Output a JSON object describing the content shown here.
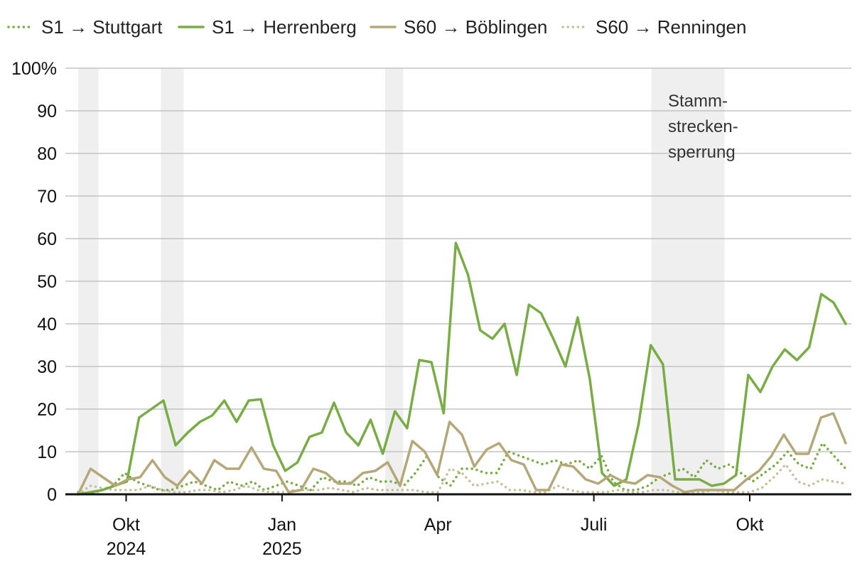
{
  "chart_data": {
    "type": "line",
    "title": "",
    "xlabel": "",
    "ylabel": "",
    "ylim": [
      0,
      100
    ],
    "y_ticks": [
      "100%",
      "90",
      "80",
      "70",
      "60",
      "50",
      "40",
      "30",
      "20",
      "10",
      "0"
    ],
    "y_tick_values": [
      100,
      90,
      80,
      70,
      60,
      50,
      40,
      30,
      20,
      10,
      0
    ],
    "x_start_week": 0,
    "x_end_week": 64,
    "x_ticks": [
      {
        "label": "Okt",
        "sublabel": "2024",
        "week": 4
      },
      {
        "label": "Jan",
        "sublabel": "2025",
        "week": 17
      },
      {
        "label": "Apr",
        "sublabel": "",
        "week": 30
      },
      {
        "label": "Juli",
        "sublabel": "",
        "week": 43
      },
      {
        "label": "Okt",
        "sublabel": "",
        "week": 56
      }
    ],
    "shaded_periods": [
      {
        "from": 0,
        "to": 1.7,
        "label": ""
      },
      {
        "from": 6.9,
        "to": 8.8,
        "label": ""
      },
      {
        "from": 25.6,
        "to": 27.1,
        "label": ""
      },
      {
        "from": 47.8,
        "to": 53.9,
        "label": "Stamm-\nstrecken-\nsperrung"
      }
    ],
    "annotation": {
      "lines": [
        "Stamm-",
        "strecken-",
        "sperrung"
      ]
    },
    "series": [
      {
        "name": "S1 → Stuttgart",
        "color": "#78ad45",
        "style": "dotted",
        "values": [
          0.5,
          0,
          1,
          2,
          5,
          3,
          2,
          1,
          1,
          2,
          3,
          2,
          1,
          3,
          2,
          3,
          1,
          2,
          3,
          2,
          1,
          4,
          3,
          3,
          2,
          4,
          3,
          3,
          2,
          5,
          9,
          4,
          2,
          6,
          6,
          5,
          5,
          10,
          9,
          8,
          7,
          8,
          7,
          8,
          6,
          9,
          3,
          1,
          1,
          2,
          4,
          5,
          6,
          4,
          8,
          6,
          7,
          5,
          3,
          5,
          7,
          10,
          7,
          6,
          12,
          9,
          6
        ]
      },
      {
        "name": "S1 → Herrenberg",
        "color": "#78ad45",
        "style": "solid",
        "values": [
          0,
          0.5,
          1,
          2,
          3,
          18,
          20,
          22,
          11.5,
          14.5,
          17,
          18.5,
          22,
          17,
          22,
          22.3,
          11.5,
          5.5,
          7.5,
          13.5,
          14.5,
          21.5,
          14.5,
          11.5,
          17.5,
          9.5,
          19.5,
          15.5,
          31.5,
          31,
          19,
          59,
          51.5,
          38.5,
          36.5,
          40,
          28,
          44.5,
          42.5,
          36.5,
          30,
          41.5,
          27,
          5,
          2,
          3.5,
          16.5,
          35,
          30.5,
          3.5,
          3.5,
          3.5,
          2,
          2.5,
          4.5,
          28,
          24,
          30,
          34,
          31.5,
          34.5,
          47,
          45,
          40
        ]
      },
      {
        "name": "S60 → Böblingen",
        "color": "#b5a878",
        "style": "solid",
        "values": [
          0,
          6,
          4,
          2,
          3.5,
          4,
          8,
          4,
          2,
          5.5,
          2.5,
          8,
          6,
          6,
          11,
          6,
          5.5,
          0.5,
          1,
          6,
          5,
          2.5,
          2.5,
          5,
          5.5,
          7.5,
          2,
          12.5,
          10,
          4.5,
          17,
          14,
          6.5,
          10.5,
          12,
          8,
          7,
          1,
          1,
          7,
          6.5,
          3.5,
          2.5,
          4.5,
          3,
          2.5,
          4.5,
          4,
          2,
          0.5,
          1,
          1,
          1,
          1,
          3.5,
          5.5,
          9,
          14,
          9.5,
          9.5,
          18,
          19,
          12
        ]
      },
      {
        "name": "S60 → Renningen",
        "color": "#c9bf99",
        "style": "dotted",
        "values": [
          0,
          2,
          1.5,
          1,
          1,
          1,
          2,
          1,
          0.5,
          0.5,
          1,
          1,
          0.5,
          1,
          2,
          1,
          0.5,
          0.5,
          1,
          1,
          1,
          1.5,
          1,
          0.5,
          1.5,
          1,
          1,
          1,
          1,
          0.5,
          0.5,
          6,
          5,
          2,
          2.5,
          3,
          1,
          1,
          0.5,
          0.5,
          2,
          1,
          0.5,
          0.5,
          0.5,
          1,
          0.5,
          0.5,
          1,
          1,
          0.5,
          0.5,
          0.5,
          1,
          0.5,
          0.5,
          0.5,
          1.5,
          4,
          7,
          3,
          2,
          3.5,
          3,
          2.5
        ]
      }
    ]
  }
}
